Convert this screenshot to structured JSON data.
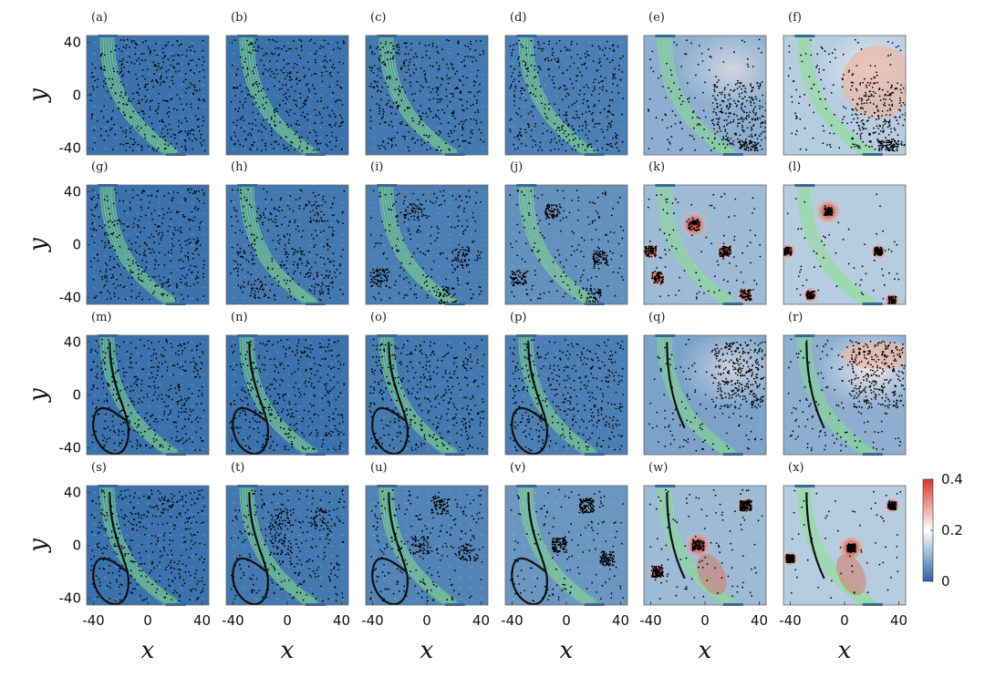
{
  "chart_data": {
    "type": "heatmap",
    "grid": {
      "rows": 4,
      "cols": 6
    },
    "panel_labels": [
      "(a)",
      "(b)",
      "(c)",
      "(d)",
      "(e)",
      "(f)",
      "(g)",
      "(h)",
      "(i)",
      "(j)",
      "(k)",
      "(l)",
      "(m)",
      "(n)",
      "(o)",
      "(p)",
      "(q)",
      "(r)",
      "(s)",
      "(t)",
      "(u)",
      "(v)",
      "(w)",
      "(x)"
    ],
    "xlabel": "x",
    "ylabel": "y",
    "xlim": [
      -45,
      45
    ],
    "ylim": [
      -45,
      45
    ],
    "x_ticks": [
      "-40",
      "0",
      "40"
    ],
    "y_ticks": [
      "40",
      "0",
      "-40"
    ],
    "x_tick_values": [
      -40,
      0,
      40
    ],
    "y_tick_values": [
      40,
      0,
      -40
    ],
    "colorbar": {
      "min": 0,
      "max": 0.4,
      "ticks": [
        "0.4",
        "0.2",
        "0"
      ],
      "tick_values": [
        0.4,
        0.2,
        0
      ],
      "colors": [
        "#2b65a6",
        "#ffffff",
        "#d63a2c"
      ]
    },
    "colors": {
      "background_low": "#3b72ad",
      "flow": "#7fe07f",
      "particles": "#000000"
    },
    "rows": [
      {
        "pattern": "dispersed",
        "levels": [
          0.0,
          0.0,
          0.01,
          0.02,
          0.1,
          0.15
        ]
      },
      {
        "pattern": "clustered",
        "levels": [
          0.0,
          0.01,
          0.02,
          0.05,
          0.12,
          0.15
        ]
      },
      {
        "pattern": "vortex-ring",
        "levels": [
          0.0,
          0.0,
          0.01,
          0.02,
          0.08,
          0.1
        ]
      },
      {
        "pattern": "vortex-clustered",
        "levels": [
          0.0,
          0.01,
          0.03,
          0.06,
          0.12,
          0.15
        ]
      }
    ]
  }
}
